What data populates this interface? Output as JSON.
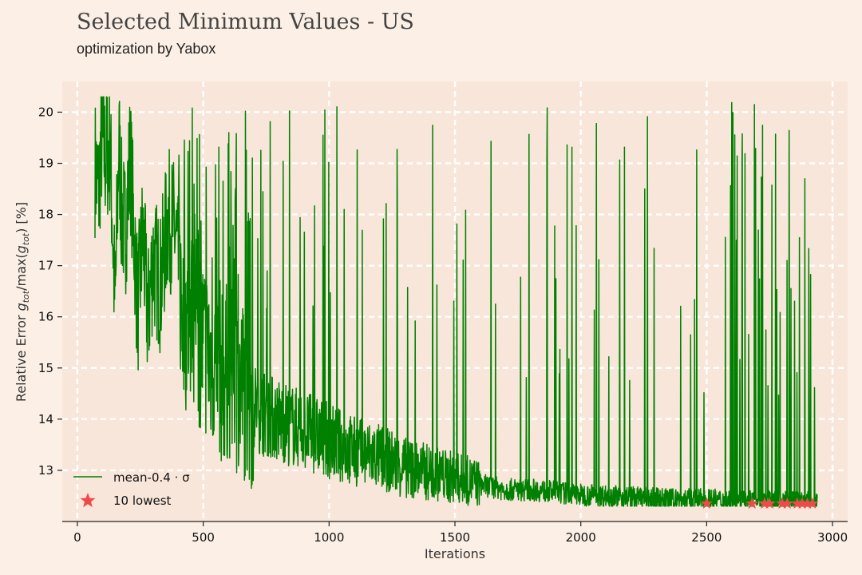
{
  "header": {
    "title": "Selected Minimum Values - US",
    "subtitle": "optimization by Yabox"
  },
  "chart_data": {
    "type": "line",
    "xlabel": "Iterations",
    "ylabel": "Relative Error g_tot/max(g_tot) [%]",
    "ylabel_parts": {
      "prefix": "Relative Error ",
      "g1": "g",
      "s1": "tot",
      "mid": "/max(",
      "g2": "g",
      "s2": "tot",
      "suffix": ") [%]"
    },
    "xlim": [
      -60,
      3060
    ],
    "ylim": [
      12.0,
      20.6
    ],
    "xticks": [
      0,
      500,
      1000,
      1500,
      2000,
      2500,
      3000
    ],
    "xtick_labels": [
      "0",
      "500",
      "1000",
      "1500",
      "2000",
      "2500",
      "3000"
    ],
    "yticks": [
      13,
      14,
      15,
      16,
      17,
      18,
      19,
      20
    ],
    "ytick_labels": [
      "13",
      "14",
      "15",
      "16",
      "17",
      "18",
      "19",
      "20"
    ],
    "grid": true,
    "legend_position": "bottom-left",
    "series": [
      {
        "name": "mean-0.4 · σ",
        "color": "#008000",
        "style": "line",
        "x": [
          70,
          85,
          95,
          110,
          130,
          150,
          165,
          175,
          190,
          210,
          240,
          260,
          280,
          300,
          330,
          360,
          390,
          410,
          420,
          440,
          460,
          480,
          500,
          530,
          560,
          580,
          600,
          620,
          650,
          680,
          700,
          750,
          800,
          850,
          900,
          1000,
          1100,
          1200,
          1300,
          1400,
          1500,
          1600,
          1700,
          1800,
          1900,
          2000,
          2100,
          2200,
          2300,
          2400,
          2500,
          2600,
          2700,
          2800,
          2900,
          2940
        ],
        "y": [
          18.8,
          18.3,
          19.3,
          19.0,
          19.2,
          16.0,
          19.3,
          18.0,
          17.5,
          19.0,
          16.0,
          17.5,
          15.8,
          17.0,
          16.5,
          17.8,
          17.5,
          16.2,
          15.8,
          15.7,
          15.9,
          15.5,
          15.3,
          15.0,
          14.9,
          14.6,
          14.8,
          14.5,
          14.5,
          14.3,
          14.2,
          14.0,
          13.9,
          13.8,
          13.7,
          13.5,
          13.3,
          13.2,
          13.0,
          12.9,
          12.8,
          12.7,
          12.6,
          12.6,
          12.55,
          12.5,
          12.48,
          12.45,
          12.42,
          12.4,
          12.4,
          12.38,
          12.37,
          12.36,
          12.35,
          12.35
        ]
      },
      {
        "name": "10 lowest",
        "color": "#ef4a4a",
        "style": "star",
        "x": [
          2500,
          2680,
          2730,
          2750,
          2800,
          2820,
          2860,
          2880,
          2900,
          2920
        ],
        "y": [
          12.35,
          12.35,
          12.35,
          12.35,
          12.35,
          12.35,
          12.35,
          12.35,
          12.35,
          12.35
        ]
      }
    ]
  }
}
